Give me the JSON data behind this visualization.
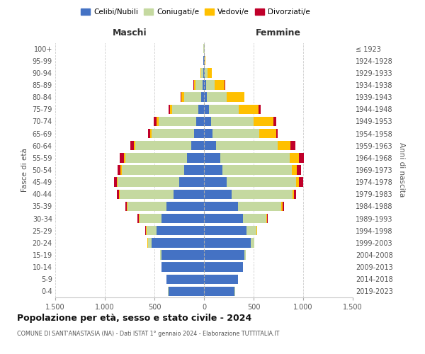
{
  "age_groups": [
    "0-4",
    "5-9",
    "10-14",
    "15-19",
    "20-24",
    "25-29",
    "30-34",
    "35-39",
    "40-44",
    "45-49",
    "50-54",
    "55-59",
    "60-64",
    "65-69",
    "70-74",
    "75-79",
    "80-84",
    "85-89",
    "90-94",
    "95-99",
    "100+"
  ],
  "birth_years": [
    "2019-2023",
    "2014-2018",
    "2009-2013",
    "2004-2008",
    "1999-2003",
    "1994-1998",
    "1989-1993",
    "1984-1988",
    "1979-1983",
    "1974-1978",
    "1969-1973",
    "1964-1968",
    "1959-1963",
    "1954-1958",
    "1949-1953",
    "1944-1948",
    "1939-1943",
    "1934-1938",
    "1929-1933",
    "1924-1928",
    "≤ 1923"
  ],
  "males": {
    "celibi": [
      360,
      380,
      430,
      430,
      530,
      480,
      430,
      380,
      310,
      250,
      200,
      170,
      130,
      100,
      80,
      55,
      30,
      15,
      8,
      4,
      2
    ],
    "coniugati": [
      2,
      2,
      2,
      10,
      35,
      100,
      220,
      390,
      540,
      620,
      630,
      620,
      560,
      430,
      380,
      270,
      170,
      70,
      20,
      4,
      2
    ],
    "vedovi": [
      0,
      0,
      0,
      2,
      5,
      5,
      10,
      10,
      10,
      10,
      10,
      15,
      15,
      15,
      20,
      20,
      30,
      15,
      5,
      2,
      0
    ],
    "divorziati": [
      0,
      0,
      0,
      0,
      2,
      5,
      10,
      15,
      20,
      30,
      35,
      45,
      35,
      20,
      30,
      15,
      5,
      4,
      2,
      0,
      0
    ]
  },
  "females": {
    "nubili": [
      310,
      340,
      390,
      410,
      470,
      430,
      390,
      340,
      280,
      230,
      185,
      165,
      120,
      85,
      70,
      50,
      30,
      20,
      10,
      5,
      2
    ],
    "coniugate": [
      2,
      2,
      2,
      10,
      35,
      100,
      240,
      440,
      610,
      700,
      700,
      700,
      620,
      470,
      430,
      300,
      195,
      90,
      25,
      5,
      2
    ],
    "vedove": [
      0,
      0,
      0,
      0,
      2,
      3,
      5,
      10,
      15,
      30,
      50,
      90,
      130,
      175,
      200,
      200,
      180,
      100,
      40,
      5,
      2
    ],
    "divorziate": [
      0,
      0,
      0,
      0,
      2,
      5,
      10,
      15,
      20,
      40,
      40,
      55,
      50,
      15,
      30,
      20,
      5,
      4,
      2,
      0,
      0
    ]
  },
  "colors": {
    "celibi_nubili": "#4472c4",
    "coniugati": "#c5d9a0",
    "vedovi": "#ffc000",
    "divorziati": "#c0002a"
  },
  "title": "Popolazione per età, sesso e stato civile - 2024",
  "subtitle": "COMUNE DI SANT'ANASTASIA (NA) - Dati ISTAT 1° gennaio 2024 - Elaborazione TUTTITALIA.IT",
  "xlabel_left": "Maschi",
  "xlabel_right": "Femmine",
  "ylabel_left": "Fasce di età",
  "ylabel_right": "Anni di nascita",
  "xlim": 1500,
  "xtick_vals": [
    -1500,
    -1000,
    -500,
    0,
    500,
    1000,
    1500
  ],
  "xtick_labels": [
    "1.500",
    "1.000",
    "500",
    "0",
    "500",
    "1.000",
    "1.500"
  ],
  "legend_labels": [
    "Celibi/Nubili",
    "Coniugati/e",
    "Vedovi/e",
    "Divorziati/e"
  ],
  "background_color": "#ffffff",
  "grid_color": "#cccccc"
}
